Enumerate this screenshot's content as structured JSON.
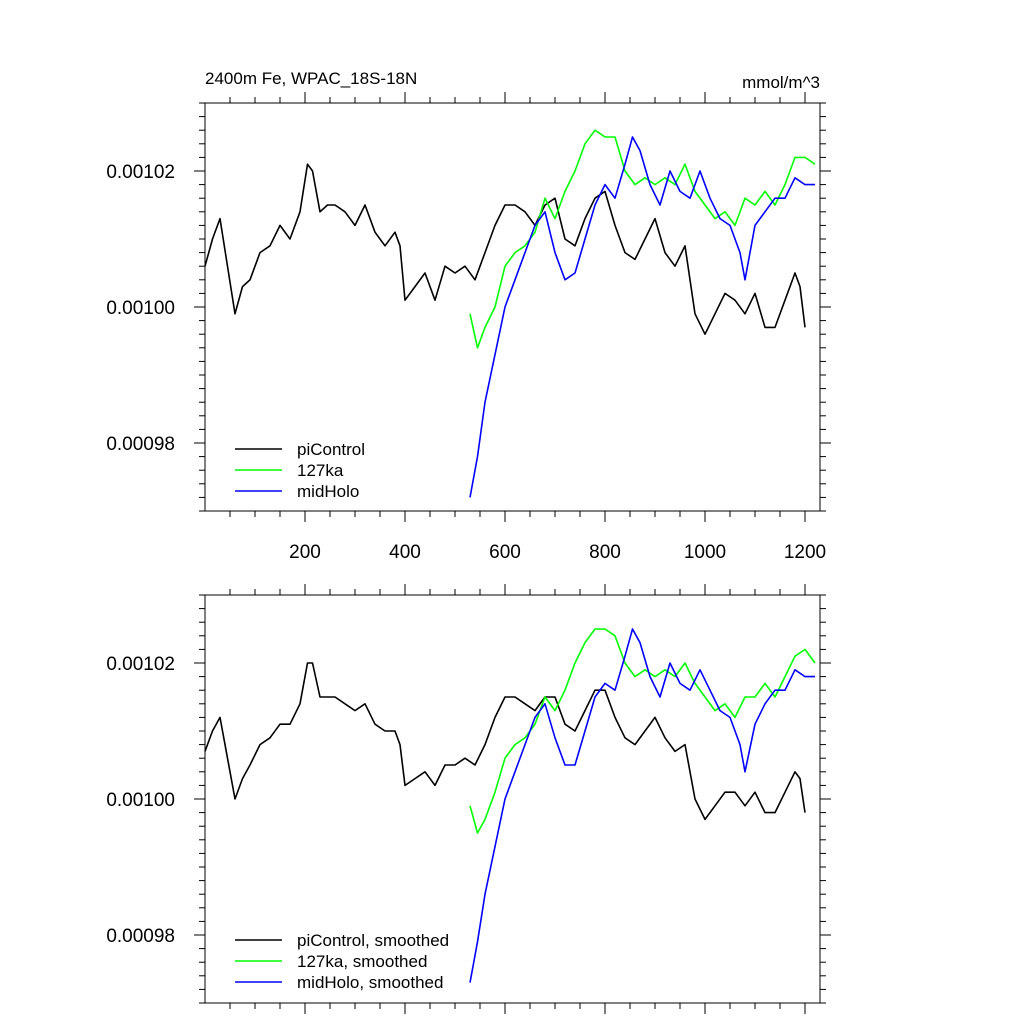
{
  "header": {
    "title": "2400m Fe, WPAC_18S-18N",
    "units": "mmol/m^3"
  },
  "chart_data": [
    {
      "type": "line",
      "panel": "raw",
      "title": "2400m Fe, WPAC_18S-18N",
      "units_label": "mmol/m^3",
      "xlim": [
        0,
        1230
      ],
      "ylim": [
        0.00097,
        0.00103
      ],
      "x_ticks": [
        200,
        400,
        600,
        800,
        1000,
        1200
      ],
      "x_tick_labels": [
        "200",
        "400",
        "600",
        "800",
        "1000",
        "1200"
      ],
      "y_ticks": [
        0.00098,
        0.001,
        0.00102
      ],
      "y_tick_labels": [
        "0.00098",
        "0.00100",
        "0.00102"
      ],
      "legend_position": "bottom-left",
      "grid": false,
      "series": [
        {
          "name": "piControl",
          "color": "#000000",
          "x": [
            0,
            15,
            30,
            45,
            60,
            75,
            90,
            110,
            130,
            150,
            170,
            190,
            205,
            215,
            230,
            245,
            260,
            280,
            300,
            320,
            340,
            360,
            380,
            390,
            400,
            420,
            440,
            460,
            480,
            500,
            520,
            540,
            560,
            580,
            600,
            620,
            640,
            660,
            680,
            700,
            720,
            740,
            760,
            780,
            800,
            820,
            840,
            860,
            880,
            900,
            920,
            940,
            960,
            980,
            1000,
            1020,
            1040,
            1060,
            1080,
            1100,
            1120,
            1140,
            1160,
            1180,
            1190,
            1200
          ],
          "y": [
            0.001006,
            0.00101,
            0.001013,
            0.001006,
            0.000999,
            0.001003,
            0.001004,
            0.001008,
            0.001009,
            0.001012,
            0.00101,
            0.001014,
            0.001021,
            0.00102,
            0.001014,
            0.001015,
            0.001015,
            0.001014,
            0.001012,
            0.001015,
            0.001011,
            0.001009,
            0.001011,
            0.001009,
            0.001001,
            0.001003,
            0.001005,
            0.001001,
            0.001006,
            0.001005,
            0.001006,
            0.001004,
            0.001008,
            0.001012,
            0.001015,
            0.001015,
            0.001014,
            0.001012,
            0.001015,
            0.001016,
            0.00101,
            0.001009,
            0.001013,
            0.001016,
            0.001017,
            0.001012,
            0.001008,
            0.001007,
            0.00101,
            0.001013,
            0.001008,
            0.001006,
            0.001009,
            0.000999,
            0.000996,
            0.000999,
            0.001002,
            0.001001,
            0.000999,
            0.001002,
            0.000997,
            0.000997,
            0.001001,
            0.001005,
            0.001003,
            0.000997
          ]
        },
        {
          "name": "127ka",
          "color": "#00ff00",
          "x": [
            530,
            545,
            560,
            580,
            600,
            620,
            640,
            660,
            680,
            700,
            720,
            740,
            760,
            780,
            800,
            820,
            840,
            860,
            880,
            900,
            920,
            940,
            960,
            980,
            1000,
            1020,
            1040,
            1060,
            1080,
            1100,
            1120,
            1140,
            1160,
            1180,
            1200,
            1220
          ],
          "y": [
            0.000999,
            0.000994,
            0.000997,
            0.001,
            0.001006,
            0.001008,
            0.001009,
            0.001011,
            0.001016,
            0.001013,
            0.001017,
            0.00102,
            0.001024,
            0.001026,
            0.001025,
            0.001025,
            0.00102,
            0.001018,
            0.001019,
            0.001018,
            0.001019,
            0.001018,
            0.001021,
            0.001017,
            0.001015,
            0.001013,
            0.001014,
            0.001012,
            0.001016,
            0.001015,
            0.001017,
            0.001015,
            0.001018,
            0.001022,
            0.001022,
            0.001021
          ]
        },
        {
          "name": "midHolo",
          "color": "#0000ff",
          "x": [
            530,
            545,
            560,
            580,
            600,
            620,
            640,
            660,
            680,
            700,
            720,
            740,
            760,
            780,
            800,
            820,
            840,
            855,
            870,
            890,
            910,
            930,
            950,
            970,
            990,
            1010,
            1030,
            1050,
            1070,
            1080,
            1100,
            1120,
            1140,
            1160,
            1180,
            1200,
            1220
          ],
          "y": [
            0.000972,
            0.000978,
            0.000986,
            0.000993,
            0.001,
            0.001004,
            0.001008,
            0.001012,
            0.001014,
            0.001008,
            0.001004,
            0.001005,
            0.00101,
            0.001015,
            0.001018,
            0.001016,
            0.001021,
            0.001025,
            0.001023,
            0.001018,
            0.001015,
            0.00102,
            0.001017,
            0.001016,
            0.00102,
            0.001016,
            0.001013,
            0.001012,
            0.001008,
            0.001004,
            0.001012,
            0.001014,
            0.001016,
            0.001016,
            0.001019,
            0.001018,
            0.001018
          ]
        }
      ]
    },
    {
      "type": "line",
      "panel": "smoothed",
      "xlim": [
        0,
        1230
      ],
      "ylim": [
        0.00097,
        0.00103
      ],
      "y_ticks": [
        0.00098,
        0.001,
        0.00102
      ],
      "y_tick_labels": [
        "0.00098",
        "0.00100",
        "0.00102"
      ],
      "legend_position": "bottom-left",
      "grid": false,
      "series": [
        {
          "name": "piControl, smoothed",
          "color": "#000000",
          "x": [
            0,
            15,
            30,
            45,
            60,
            75,
            90,
            110,
            130,
            150,
            170,
            190,
            205,
            215,
            230,
            245,
            260,
            280,
            300,
            320,
            340,
            360,
            380,
            390,
            400,
            420,
            440,
            460,
            480,
            500,
            520,
            540,
            560,
            580,
            600,
            620,
            640,
            660,
            680,
            700,
            720,
            740,
            760,
            780,
            800,
            820,
            840,
            860,
            880,
            900,
            920,
            940,
            960,
            980,
            1000,
            1020,
            1040,
            1060,
            1080,
            1100,
            1120,
            1140,
            1160,
            1180,
            1190,
            1200
          ],
          "y": [
            0.001007,
            0.00101,
            0.001012,
            0.001006,
            0.001,
            0.001003,
            0.001005,
            0.001008,
            0.001009,
            0.001011,
            0.001011,
            0.001014,
            0.00102,
            0.00102,
            0.001015,
            0.001015,
            0.001015,
            0.001014,
            0.001013,
            0.001014,
            0.001011,
            0.00101,
            0.00101,
            0.001008,
            0.001002,
            0.001003,
            0.001004,
            0.001002,
            0.001005,
            0.001005,
            0.001006,
            0.001005,
            0.001008,
            0.001012,
            0.001015,
            0.001015,
            0.001014,
            0.001013,
            0.001015,
            0.001015,
            0.001011,
            0.00101,
            0.001013,
            0.001016,
            0.001016,
            0.001012,
            0.001009,
            0.001008,
            0.00101,
            0.001012,
            0.001009,
            0.001007,
            0.001008,
            0.001,
            0.000997,
            0.000999,
            0.001001,
            0.001001,
            0.000999,
            0.001001,
            0.000998,
            0.000998,
            0.001001,
            0.001004,
            0.001003,
            0.000998
          ]
        },
        {
          "name": "127ka, smoothed",
          "color": "#00ff00",
          "x": [
            530,
            545,
            560,
            580,
            600,
            620,
            640,
            660,
            680,
            700,
            720,
            740,
            760,
            780,
            800,
            820,
            840,
            860,
            880,
            900,
            920,
            940,
            960,
            980,
            1000,
            1020,
            1040,
            1060,
            1080,
            1100,
            1120,
            1140,
            1160,
            1180,
            1200,
            1220
          ],
          "y": [
            0.000999,
            0.000995,
            0.000997,
            0.001001,
            0.001006,
            0.001008,
            0.001009,
            0.001011,
            0.001015,
            0.001013,
            0.001016,
            0.00102,
            0.001023,
            0.001025,
            0.001025,
            0.001024,
            0.00102,
            0.001018,
            0.001019,
            0.001018,
            0.001019,
            0.001018,
            0.00102,
            0.001017,
            0.001015,
            0.001013,
            0.001014,
            0.001012,
            0.001015,
            0.001015,
            0.001017,
            0.001015,
            0.001018,
            0.001021,
            0.001022,
            0.00102
          ]
        },
        {
          "name": "midHolo, smoothed",
          "color": "#0000ff",
          "x": [
            530,
            545,
            560,
            580,
            600,
            620,
            640,
            660,
            680,
            700,
            720,
            740,
            760,
            780,
            800,
            820,
            840,
            855,
            870,
            890,
            910,
            930,
            950,
            970,
            990,
            1010,
            1030,
            1050,
            1070,
            1080,
            1100,
            1120,
            1140,
            1160,
            1180,
            1200,
            1220
          ],
          "y": [
            0.000973,
            0.000979,
            0.000986,
            0.000993,
            0.001,
            0.001004,
            0.001008,
            0.001012,
            0.001014,
            0.001009,
            0.001005,
            0.001005,
            0.00101,
            0.001015,
            0.001017,
            0.001016,
            0.001021,
            0.001025,
            0.001023,
            0.001018,
            0.001015,
            0.00102,
            0.001017,
            0.001016,
            0.001019,
            0.001016,
            0.001013,
            0.001012,
            0.001008,
            0.001004,
            0.001011,
            0.001014,
            0.001016,
            0.001016,
            0.001019,
            0.001018,
            0.001018
          ]
        }
      ]
    }
  ]
}
